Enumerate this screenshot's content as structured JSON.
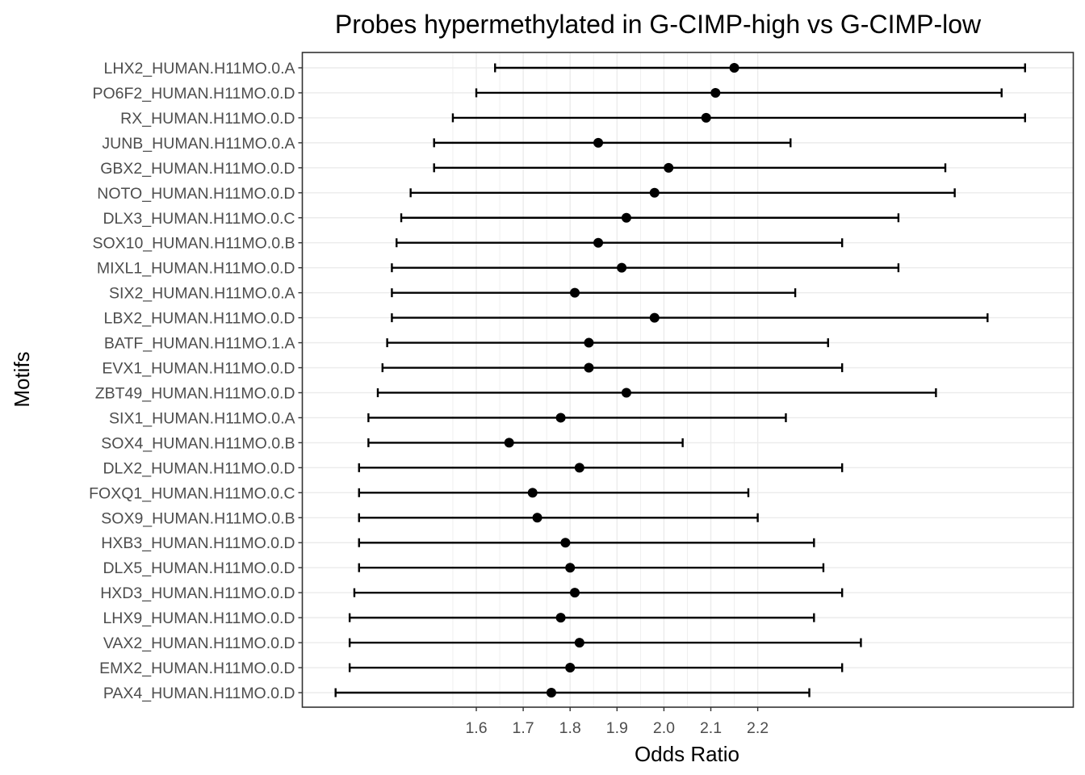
{
  "chart_data": {
    "type": "scatter",
    "title": "Probes hypermethylated in G-CIMP-high vs G-CIMP-low",
    "xlabel": "Odds Ratio",
    "ylabel": "Motifs",
    "x_ticks": [
      1.6,
      1.7,
      1.8,
      1.9,
      2.0,
      2.1,
      2.2
    ],
    "x_tick_labels": [
      "1.6",
      "1.7",
      "1.8",
      "1.9",
      "2.0",
      "2.1",
      "2.2"
    ],
    "xlim": [
      1.23,
      2.78
    ],
    "grid": true,
    "categories": [
      "LHX2_HUMAN.H11MO.0.A",
      "PO6F2_HUMAN.H11MO.0.D",
      "RX_HUMAN.H11MO.0.D",
      "JUNB_HUMAN.H11MO.0.A",
      "GBX2_HUMAN.H11MO.0.D",
      "NOTO_HUMAN.H11MO.0.D",
      "DLX3_HUMAN.H11MO.0.C",
      "SOX10_HUMAN.H11MO.0.B",
      "MIXL1_HUMAN.H11MO.0.D",
      "SIX2_HUMAN.H11MO.0.A",
      "LBX2_HUMAN.H11MO.0.D",
      "BATF_HUMAN.H11MO.1.A",
      "EVX1_HUMAN.H11MO.0.D",
      "ZBT49_HUMAN.H11MO.0.D",
      "SIX1_HUMAN.H11MO.0.A",
      "SOX4_HUMAN.H11MO.0.B",
      "DLX2_HUMAN.H11MO.0.D",
      "FOXQ1_HUMAN.H11MO.0.C",
      "SOX9_HUMAN.H11MO.0.B",
      "HXB3_HUMAN.H11MO.0.D",
      "DLX5_HUMAN.H11MO.0.D",
      "HXD3_HUMAN.H11MO.0.D",
      "LHX9_HUMAN.H11MO.0.D",
      "VAX2_HUMAN.H11MO.0.D",
      "EMX2_HUMAN.H11MO.0.D",
      "PAX4_HUMAN.H11MO.0.D"
    ],
    "series": [
      {
        "odds_ratio": [
          2.15,
          2.11,
          2.09,
          1.86,
          2.01,
          1.98,
          1.92,
          1.86,
          1.91,
          1.81,
          1.98,
          1.84,
          1.84,
          1.92,
          1.78,
          1.67,
          1.82,
          1.72,
          1.73,
          1.79,
          1.8,
          1.81,
          1.78,
          1.82,
          1.8,
          1.76
        ],
        "lower": [
          1.64,
          1.6,
          1.55,
          1.51,
          1.51,
          1.46,
          1.44,
          1.43,
          1.42,
          1.42,
          1.42,
          1.41,
          1.4,
          1.39,
          1.37,
          1.37,
          1.35,
          1.35,
          1.35,
          1.35,
          1.35,
          1.34,
          1.33,
          1.33,
          1.33,
          1.3
        ],
        "upper": [
          2.77,
          2.72,
          2.77,
          2.27,
          2.6,
          2.62,
          2.5,
          2.38,
          2.5,
          2.28,
          2.69,
          2.35,
          2.38,
          2.58,
          2.26,
          2.04,
          2.38,
          2.18,
          2.2,
          2.32,
          2.34,
          2.38,
          2.32,
          2.42,
          2.38,
          2.31
        ]
      }
    ]
  }
}
